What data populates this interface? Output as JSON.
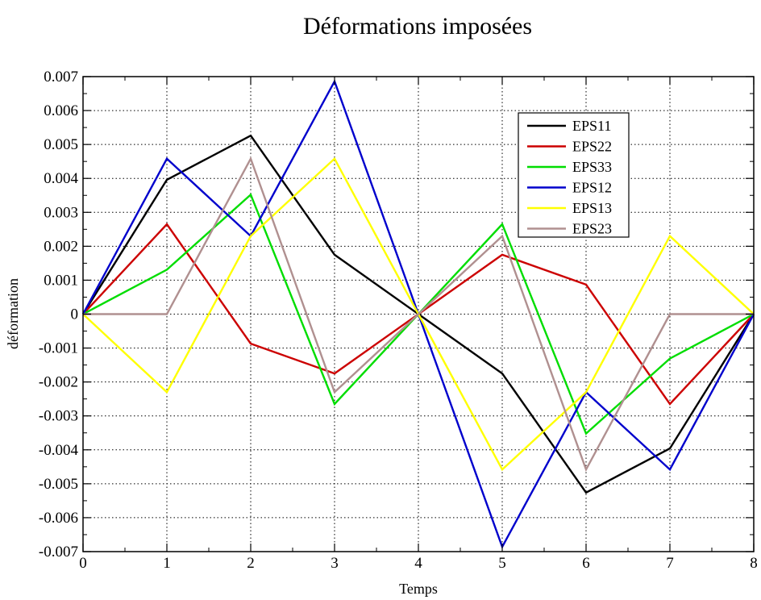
{
  "chart_data": {
    "type": "line",
    "title": "Déformations imposées",
    "xlabel": "Temps",
    "ylabel": "déformation",
    "xlim": [
      0,
      8
    ],
    "ylim": [
      -0.007,
      0.007
    ],
    "x_ticks": [
      0,
      1,
      2,
      3,
      4,
      5,
      6,
      7,
      8
    ],
    "x_tick_labels": [
      "0",
      "1",
      "2",
      "3",
      "4",
      "5",
      "6",
      "7",
      "8"
    ],
    "y_ticks": [
      0.007,
      0.006,
      0.005,
      0.004,
      0.003,
      0.002,
      0.001,
      0,
      -0.001,
      -0.002,
      -0.003,
      -0.004,
      -0.005,
      -0.006,
      -0.007
    ],
    "y_tick_labels": [
      "0.007",
      "0.006",
      "0.005",
      "0.004",
      "0.003",
      "0.002",
      "0.001",
      "0",
      "-0.001",
      "-0.002",
      "-0.003",
      "-0.004",
      "-0.005",
      "-0.006",
      "-0.007"
    ],
    "grid": true,
    "legend_position": "top-right",
    "x": [
      0,
      1,
      2,
      3,
      4,
      5,
      6,
      7,
      8
    ],
    "series": [
      {
        "name": "EPS11",
        "color": "#000000",
        "values": [
          0,
          0.00396,
          0.00526,
          0.00175,
          0,
          -0.00175,
          -0.00526,
          -0.00396,
          0
        ]
      },
      {
        "name": "EPS22",
        "color": "#cc0000",
        "values": [
          0,
          0.00265,
          -0.00087,
          -0.00175,
          0,
          0.00175,
          0.00087,
          -0.00265,
          0
        ]
      },
      {
        "name": "EPS33",
        "color": "#00dd00",
        "values": [
          0,
          0.00131,
          0.00352,
          -0.00265,
          0,
          0.00265,
          -0.00352,
          -0.00131,
          0
        ]
      },
      {
        "name": "EPS12",
        "color": "#0000cc",
        "values": [
          0,
          0.00458,
          0.0023,
          0.00686,
          0,
          -0.00686,
          -0.0023,
          -0.00458,
          0
        ]
      },
      {
        "name": "EPS13",
        "color": "#ffff00",
        "values": [
          0,
          -0.0023,
          0.0023,
          0.00458,
          0,
          -0.00458,
          -0.0023,
          0.0023,
          0
        ]
      },
      {
        "name": "EPS23",
        "color": "#b09090",
        "values": [
          0,
          0,
          0.00458,
          -0.0023,
          0,
          0.0023,
          -0.00458,
          0,
          0
        ]
      }
    ]
  }
}
